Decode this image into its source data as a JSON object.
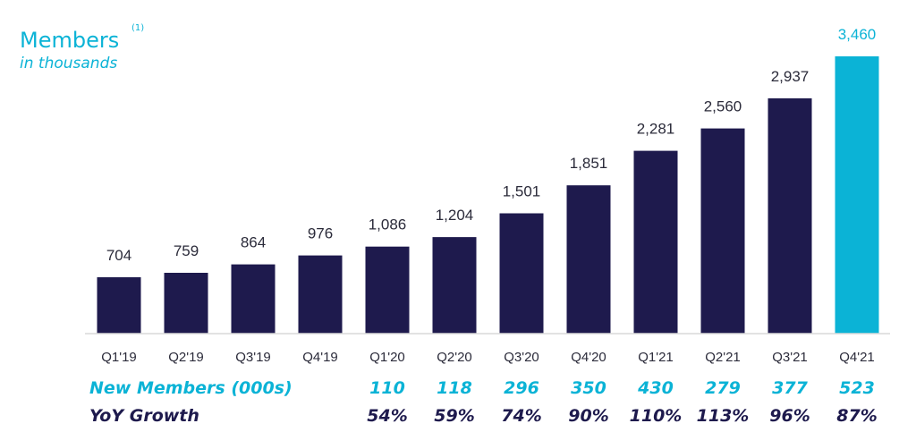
{
  "title": "Members",
  "title_footnote": "(1)",
  "subtitle": "in thousands",
  "colors": {
    "bar": "#1e1a4d",
    "highlight": "#0bb3d6",
    "axis": "#d9d9d9",
    "label_dark": "#2b2b3a",
    "accent": "#0bb3d6"
  },
  "chart_data": {
    "type": "bar",
    "categories": [
      "Q1'19",
      "Q2'19",
      "Q3'19",
      "Q4'19",
      "Q1'20",
      "Q2'20",
      "Q3'20",
      "Q4'20",
      "Q1'21",
      "Q2'21",
      "Q3'21",
      "Q4'21"
    ],
    "values": [
      704,
      759,
      864,
      976,
      1086,
      1204,
      1501,
      1851,
      2281,
      2560,
      2937,
      3460
    ],
    "value_labels": [
      "704",
      "759",
      "864",
      "976",
      "1,086",
      "1,204",
      "1,501",
      "1,851",
      "2,281",
      "2,560",
      "2,937",
      "3,460"
    ],
    "highlight_index": 11,
    "ylim": [
      0,
      3460
    ],
    "grid": false,
    "title": "Members",
    "subtitle": "in thousands"
  },
  "table": {
    "new_members": {
      "label": "New Members (000s)",
      "values": [
        "",
        "",
        "",
        "",
        "110",
        "118",
        "296",
        "350",
        "430",
        "279",
        "377",
        "523"
      ]
    },
    "yoy_growth": {
      "label": "YoY Growth",
      "values": [
        "",
        "",
        "",
        "",
        "54%",
        "59%",
        "74%",
        "90%",
        "110%",
        "113%",
        "96%",
        "87%"
      ]
    }
  }
}
